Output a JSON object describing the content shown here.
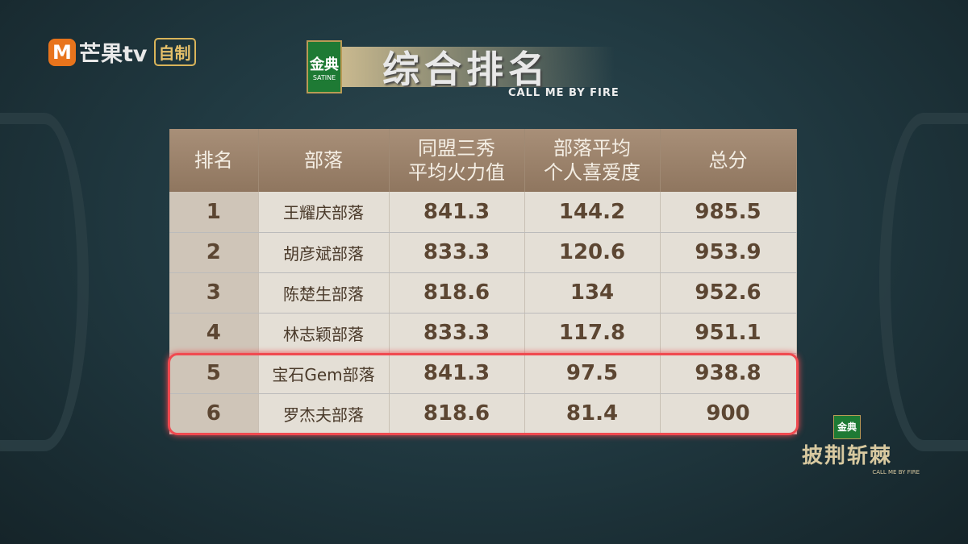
{
  "channel_logo": {
    "mark": "M",
    "name": "芒果tv",
    "tag": "自制"
  },
  "sponsor": {
    "name": "金典",
    "sub": "SATINE"
  },
  "title": "综合排名",
  "subtitle": "CALL ME BY FIRE",
  "table": {
    "headers": [
      "排名",
      "部落",
      "同盟三秀\n平均火力值",
      "部落平均\n个人喜爱度",
      "总分"
    ],
    "rows": [
      [
        "1",
        "王耀庆部落",
        "841.3",
        "144.2",
        "985.5"
      ],
      [
        "2",
        "胡彦斌部落",
        "833.3",
        "120.6",
        "953.9"
      ],
      [
        "3",
        "陈楚生部落",
        "818.6",
        "134",
        "952.6"
      ],
      [
        "4",
        "林志颖部落",
        "833.3",
        "117.8",
        "951.1"
      ],
      [
        "5",
        "宝石Gem部落",
        "841.3",
        "97.5",
        "938.8"
      ],
      [
        "6",
        "罗杰夫部落",
        "818.6",
        "81.4",
        "900"
      ]
    ],
    "highlighted_rows": [
      "5",
      "6"
    ],
    "highlight_color": "#f04a50"
  },
  "show_logo": {
    "sponsor": "金典",
    "name": "披荆斩棘",
    "sub": "CALL ME BY FIRE"
  }
}
